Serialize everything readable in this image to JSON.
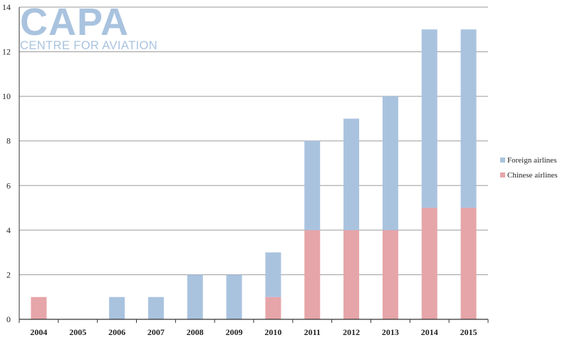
{
  "logo": {
    "main": "CAPA",
    "sub": "CENTRE FOR AVIATION"
  },
  "chart_data": {
    "type": "bar",
    "stacked": true,
    "categories": [
      "2004",
      "2005",
      "2006",
      "2007",
      "2008",
      "2009",
      "2010",
      "2011",
      "2012",
      "2013",
      "2014",
      "2015"
    ],
    "series": [
      {
        "name": "Chinese airlines",
        "color": "#e6a5a8",
        "values": [
          1,
          0,
          0,
          0,
          0,
          0,
          1,
          4,
          4,
          4,
          5,
          5
        ]
      },
      {
        "name": "Foreign airlines",
        "color": "#a9c3df",
        "values": [
          0,
          0,
          1,
          1,
          2,
          2,
          2,
          4,
          5,
          6,
          8,
          8
        ]
      }
    ],
    "ylim": [
      0,
      14
    ],
    "yticks": [
      0,
      2,
      4,
      6,
      8,
      10,
      12,
      14
    ],
    "grid": true,
    "legend_position": "right",
    "legend_order": [
      "Foreign airlines",
      "Chinese airlines"
    ],
    "title": "",
    "xlabel": "",
    "ylabel": ""
  }
}
